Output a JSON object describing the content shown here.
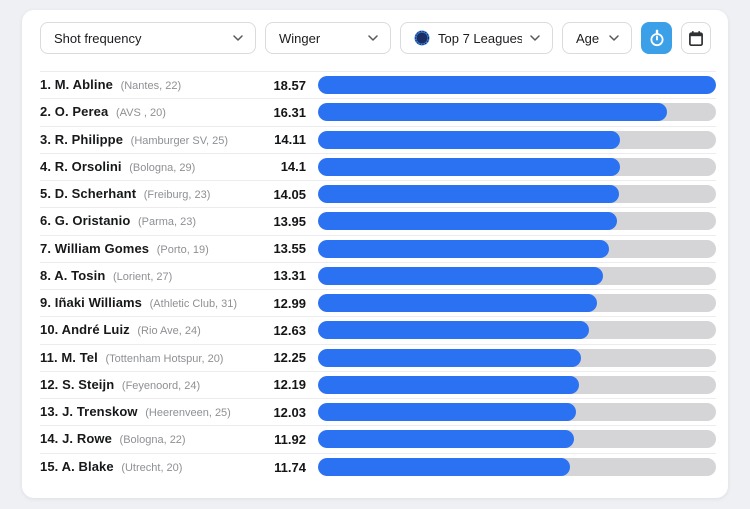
{
  "toolbar": {
    "stat_dropdown": {
      "value": "Shot frequency"
    },
    "position_dropdown": {
      "value": "Winger"
    },
    "league_dropdown": {
      "value": "Top 7 Leagues",
      "icon": "league-badge-icon"
    },
    "age_dropdown": {
      "value": "Age"
    },
    "timer_button": {
      "icon": "stopwatch-icon"
    },
    "calendar_button": {
      "icon": "calendar-icon"
    }
  },
  "colors": {
    "bar_fill": "#2b72f2",
    "bar_track": "#d5d5d7",
    "accent_button": "#3ba0e8",
    "page_background": "#eef0f4",
    "card_background": "#ffffff"
  },
  "chart_data": {
    "type": "bar",
    "title": "Shot frequency",
    "orientation": "horizontal",
    "max_value": 18.57,
    "players": [
      {
        "rank": "1.",
        "name": "M. Abline",
        "meta": "(Nantes, 22)",
        "value": "18.57"
      },
      {
        "rank": "2.",
        "name": "O. Perea",
        "meta": "(AVS , 20)",
        "value": "16.31"
      },
      {
        "rank": "3.",
        "name": "R. Philippe",
        "meta": "(Hamburger SV, 25)",
        "value": "14.11"
      },
      {
        "rank": "4.",
        "name": "R. Orsolini",
        "meta": "(Bologna, 29)",
        "value": "14.1"
      },
      {
        "rank": "5.",
        "name": "D. Scherhant",
        "meta": "(Freiburg, 23)",
        "value": "14.05"
      },
      {
        "rank": "6.",
        "name": "G. Oristanio",
        "meta": "(Parma, 23)",
        "value": "13.95"
      },
      {
        "rank": "7.",
        "name": "William Gomes",
        "meta": "(Porto, 19)",
        "value": "13.55"
      },
      {
        "rank": "8.",
        "name": "A. Tosin",
        "meta": "(Lorient, 27)",
        "value": "13.31"
      },
      {
        "rank": "9.",
        "name": "Iñaki Williams",
        "meta": "(Athletic Club, 31)",
        "value": "12.99"
      },
      {
        "rank": "10.",
        "name": "André Luiz",
        "meta": "(Rio Ave, 24)",
        "value": "12.63"
      },
      {
        "rank": "11.",
        "name": "M. Tel",
        "meta": "(Tottenham Hotspur, 20)",
        "value": "12.25"
      },
      {
        "rank": "12.",
        "name": "S. Steijn",
        "meta": "(Feyenoord, 24)",
        "value": "12.19"
      },
      {
        "rank": "13.",
        "name": "J. Trenskow",
        "meta": "(Heerenveen, 25)",
        "value": "12.03"
      },
      {
        "rank": "14.",
        "name": "J. Rowe",
        "meta": "(Bologna, 22)",
        "value": "11.92"
      },
      {
        "rank": "15.",
        "name": "A. Blake",
        "meta": "(Utrecht, 20)",
        "value": "11.74"
      }
    ]
  }
}
